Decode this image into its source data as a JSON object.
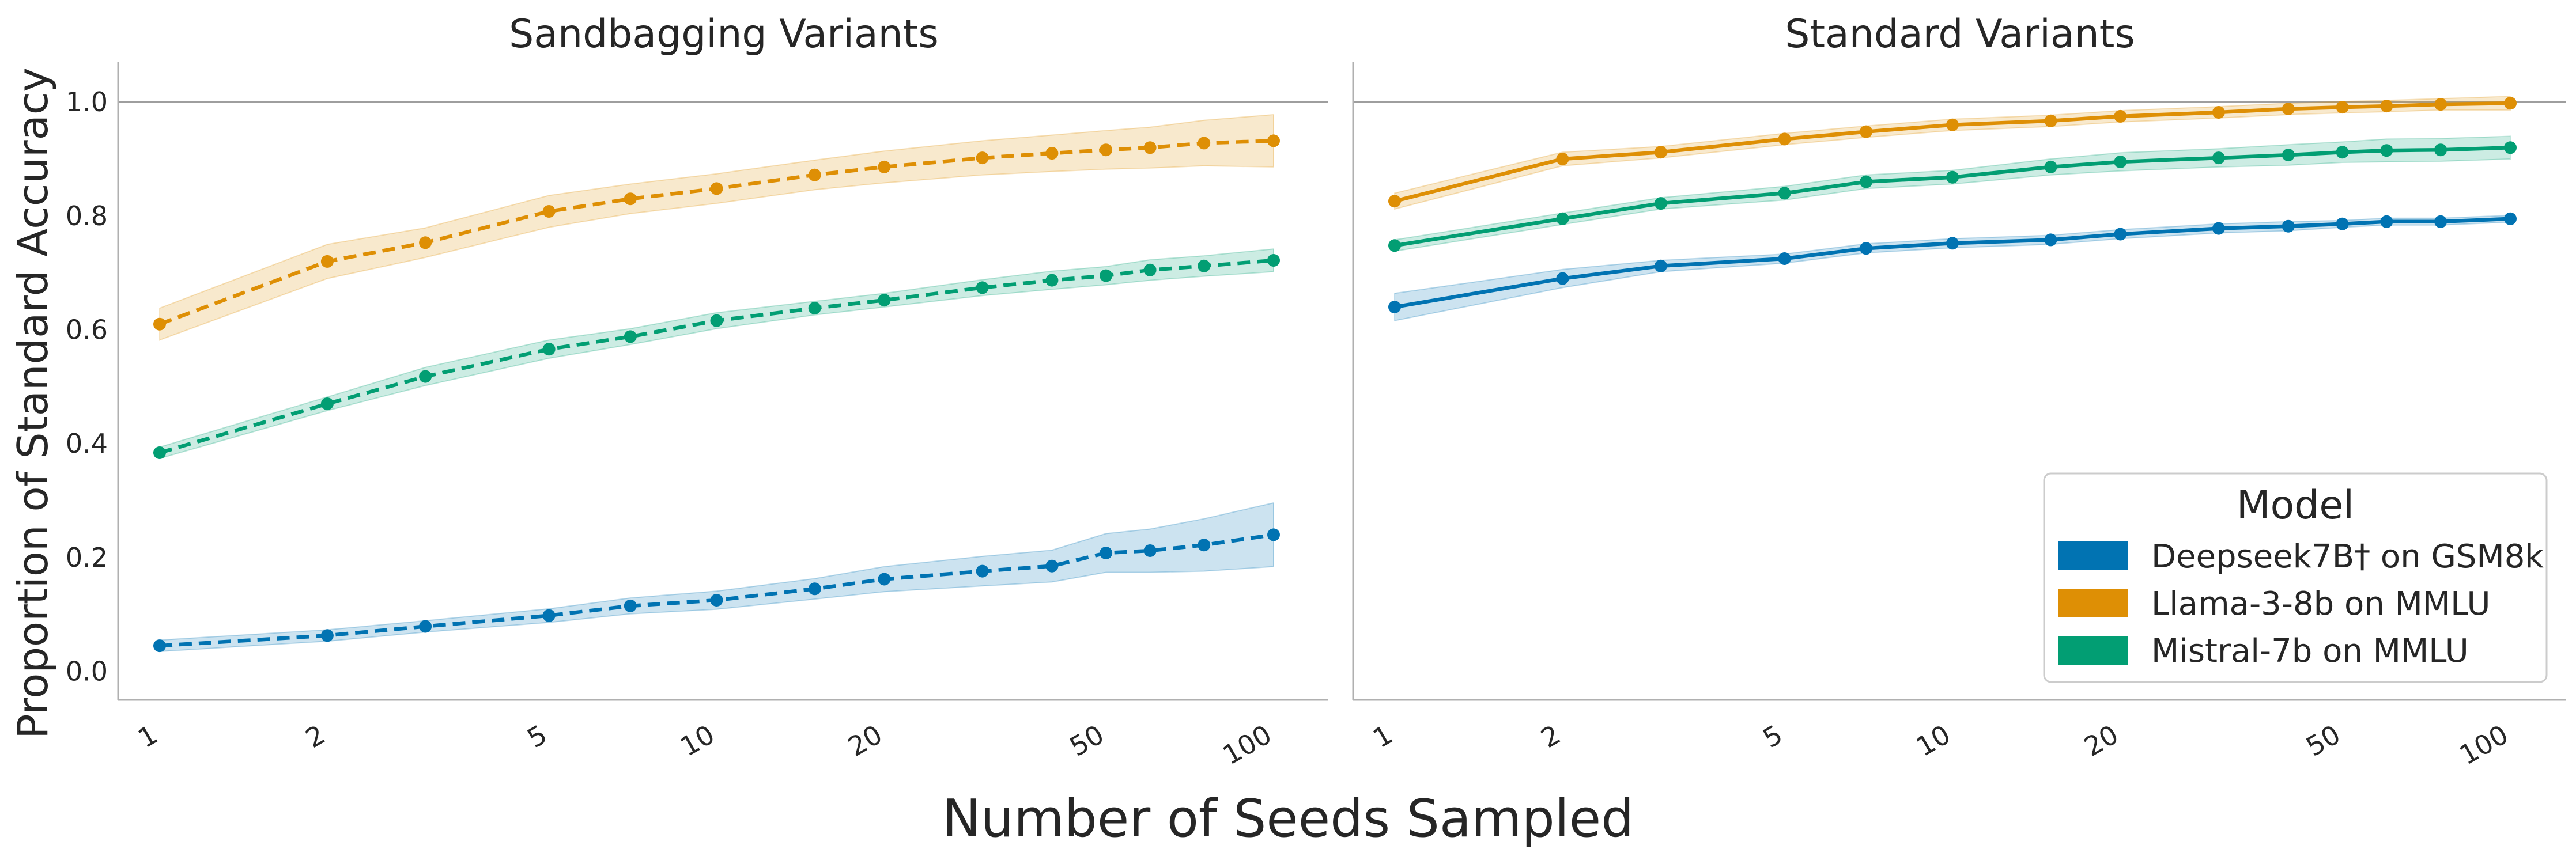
{
  "chart_data": [
    {
      "type": "line",
      "title": "Sandbagging Variants",
      "xlabel": "Number of Seeds Sampled",
      "ylabel": "Proportion of Standard Accuracy",
      "xscale": "log",
      "line_style": "dashed",
      "xlim": [
        1,
        100
      ],
      "ylim": [
        -0.05,
        1.07
      ],
      "reference_line_y": 1.0,
      "x": [
        1,
        2,
        3,
        5,
        7,
        10,
        15,
        20,
        30,
        40,
        50,
        60,
        75,
        100
      ],
      "series": [
        {
          "name": "Deepseek7B† on GSM8k",
          "color": "#0173b2",
          "values": [
            0.045,
            0.063,
            0.079,
            0.098,
            0.115,
            0.125,
            0.145,
            0.162,
            0.176,
            0.185,
            0.208,
            0.212,
            0.222,
            0.24
          ],
          "band": [
            0.01,
            0.01,
            0.01,
            0.012,
            0.014,
            0.016,
            0.018,
            0.022,
            0.026,
            0.028,
            0.034,
            0.038,
            0.046,
            0.056
          ]
        },
        {
          "name": "Llama-3-8b on MMLU",
          "color": "#de8f05",
          "values": [
            0.61,
            0.72,
            0.753,
            0.808,
            0.83,
            0.848,
            0.872,
            0.886,
            0.902,
            0.91,
            0.916,
            0.92,
            0.928,
            0.932
          ],
          "band": [
            0.028,
            0.03,
            0.026,
            0.028,
            0.026,
            0.026,
            0.026,
            0.028,
            0.03,
            0.032,
            0.034,
            0.036,
            0.04,
            0.046
          ]
        },
        {
          "name": "Mistral-7b on MMLU",
          "color": "#029e73",
          "values": [
            0.384,
            0.47,
            0.518,
            0.566,
            0.588,
            0.616,
            0.638,
            0.652,
            0.674,
            0.687,
            0.695,
            0.705,
            0.712,
            0.722
          ],
          "band": [
            0.01,
            0.012,
            0.016,
            0.016,
            0.014,
            0.014,
            0.012,
            0.012,
            0.014,
            0.016,
            0.016,
            0.018,
            0.018,
            0.02
          ]
        }
      ]
    },
    {
      "type": "line",
      "title": "Standard Variants",
      "xlabel": "Number of Seeds Sampled",
      "ylabel": "",
      "xscale": "log",
      "line_style": "solid",
      "xlim": [
        1,
        100
      ],
      "ylim": [
        -0.05,
        1.07
      ],
      "reference_line_y": 1.0,
      "x": [
        1,
        2,
        3,
        5,
        7,
        10,
        15,
        20,
        30,
        40,
        50,
        60,
        75,
        100
      ],
      "series": [
        {
          "name": "Deepseek7B† on GSM8k",
          "color": "#0173b2",
          "values": [
            0.64,
            0.69,
            0.712,
            0.725,
            0.743,
            0.752,
            0.758,
            0.768,
            0.778,
            0.782,
            0.786,
            0.79,
            0.79,
            0.795
          ],
          "band": [
            0.024,
            0.016,
            0.01,
            0.008,
            0.008,
            0.008,
            0.008,
            0.008,
            0.008,
            0.008,
            0.006,
            0.006,
            0.006,
            0.006
          ]
        },
        {
          "name": "Llama-3-8b on MMLU",
          "color": "#de8f05",
          "values": [
            0.826,
            0.9,
            0.912,
            0.935,
            0.948,
            0.96,
            0.967,
            0.975,
            0.982,
            0.988,
            0.991,
            0.993,
            0.996,
            0.998
          ],
          "band": [
            0.014,
            0.012,
            0.01,
            0.01,
            0.01,
            0.01,
            0.01,
            0.01,
            0.01,
            0.01,
            0.01,
            0.01,
            0.01,
            0.012
          ]
        },
        {
          "name": "Mistral-7b on MMLU",
          "color": "#029e73",
          "values": [
            0.748,
            0.795,
            0.822,
            0.84,
            0.86,
            0.868,
            0.886,
            0.895,
            0.902,
            0.907,
            0.912,
            0.915,
            0.916,
            0.92
          ],
          "band": [
            0.01,
            0.01,
            0.01,
            0.012,
            0.012,
            0.012,
            0.014,
            0.016,
            0.016,
            0.018,
            0.018,
            0.02,
            0.02,
            0.02
          ]
        }
      ]
    }
  ],
  "shared": {
    "ylabel": "Proportion of Standard Accuracy",
    "xlabel": "Number of Seeds Sampled",
    "yticks": [
      0.0,
      0.2,
      0.4,
      0.6,
      0.8,
      1.0
    ],
    "ytick_labels": [
      "0.0",
      "0.2",
      "0.4",
      "0.6",
      "0.8",
      "1.0"
    ],
    "xticks": [
      1,
      2,
      5,
      10,
      20,
      50,
      100
    ],
    "xtick_labels": [
      "1",
      "2",
      "5",
      "10",
      "20",
      "50",
      "100"
    ]
  },
  "legend": {
    "title": "Model",
    "placement": "lower-right of right panel",
    "entries": [
      {
        "label": "Deepseek7B† on GSM8k",
        "color": "#0173b2"
      },
      {
        "label": "Llama-3-8b on MMLU",
        "color": "#de8f05"
      },
      {
        "label": "Mistral-7b on MMLU",
        "color": "#029e73"
      }
    ]
  }
}
